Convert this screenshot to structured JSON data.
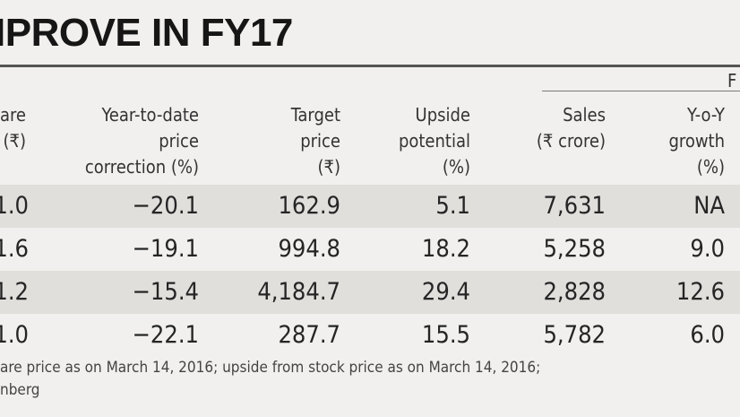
{
  "title": "IPROVE IN FY17",
  "group_label": "F",
  "headers": [
    {
      "lines": [
        "are",
        "(₹)"
      ]
    },
    {
      "lines": [
        "Year-to-date",
        "price",
        "correction (%)"
      ]
    },
    {
      "lines": [
        "Target",
        "price",
        "(₹)"
      ]
    },
    {
      "lines": [
        "Upside",
        "potential",
        "(%)"
      ]
    },
    {
      "lines": [
        "Sales",
        "(₹ crore)"
      ]
    },
    {
      "lines": [
        "Y-o-Y",
        "growth",
        "(%)"
      ]
    }
  ],
  "rows": [
    [
      "1.0",
      "−20.1",
      "162.9",
      "5.1",
      "7,631",
      "NA"
    ],
    [
      "1.6",
      "−19.1",
      "994.8",
      "18.2",
      "5,258",
      "9.0"
    ],
    [
      "1.2",
      "−15.4",
      "4,184.7",
      "29.4",
      "2,828",
      "12.6"
    ],
    [
      "1.0",
      "−22.1",
      "287.7",
      "15.5",
      "5,782",
      "6.0"
    ]
  ],
  "footnotes": [
    "are price as on March 14, 2016; upside from stock price as on March 14, 2016;",
    "nberg"
  ]
}
